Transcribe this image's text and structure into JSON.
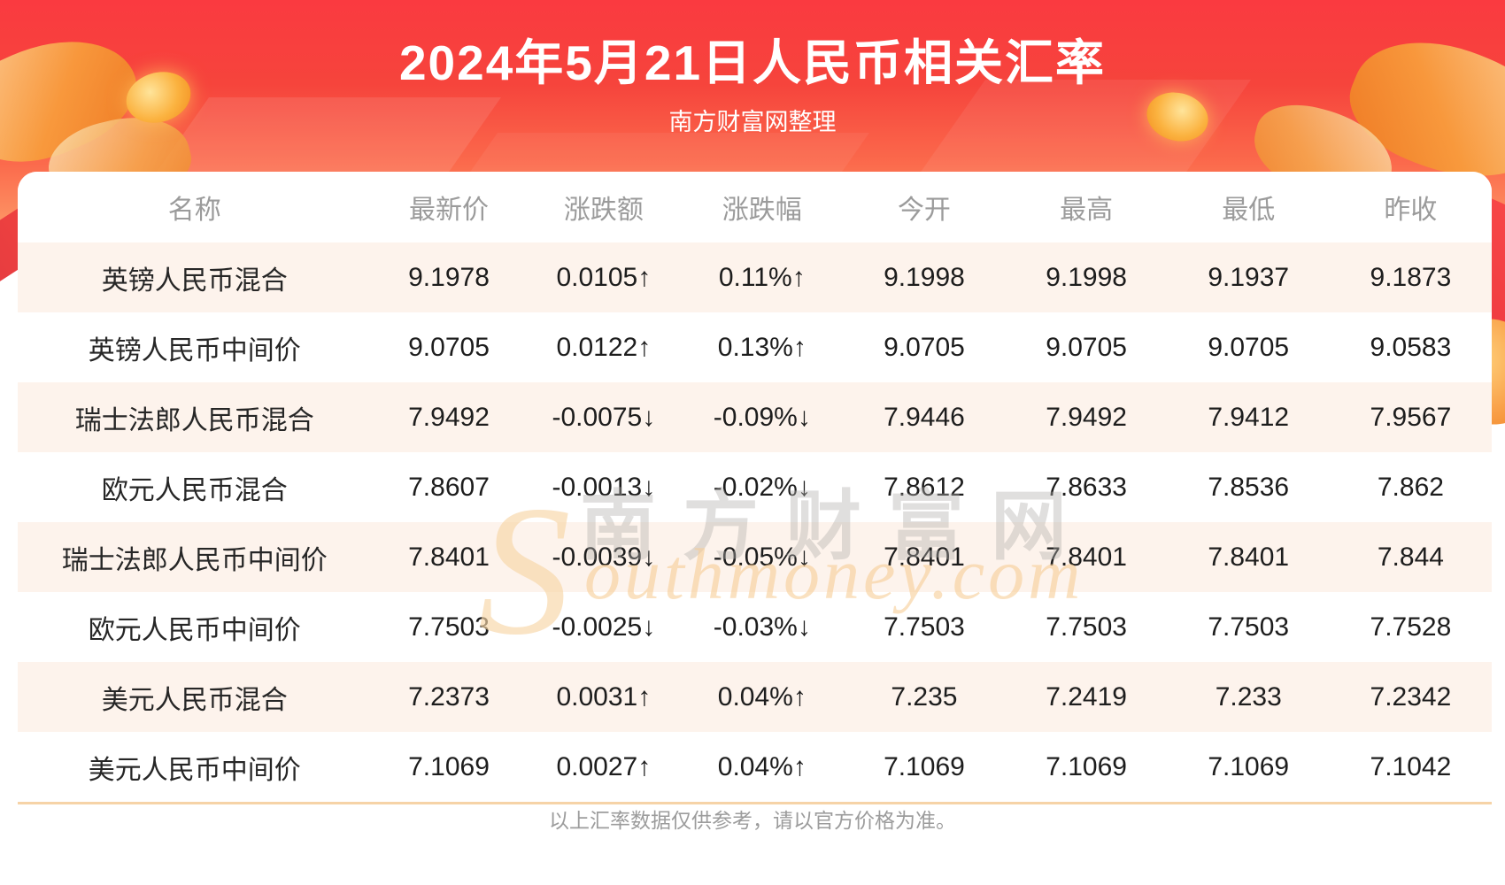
{
  "banner": {
    "title": "2024年5月21日人民币相关汇率",
    "subtitle": "南方财富网整理"
  },
  "chart_data": {
    "type": "table",
    "title": "2024年5月21日人民币相关汇率",
    "columns": [
      "名称",
      "最新价",
      "涨跌额",
      "涨跌幅",
      "今开",
      "最高",
      "最低",
      "昨收"
    ],
    "rows": [
      [
        "英镑人民币混合",
        "9.1978",
        "0.0105↑",
        "0.11%↑",
        "9.1998",
        "9.1998",
        "9.1937",
        "9.1873"
      ],
      [
        "英镑人民币中间价",
        "9.0705",
        "0.0122↑",
        "0.13%↑",
        "9.0705",
        "9.0705",
        "9.0705",
        "9.0583"
      ],
      [
        "瑞士法郎人民币混合",
        "7.9492",
        "-0.0075↓",
        "-0.09%↓",
        "7.9446",
        "7.9492",
        "7.9412",
        "7.9567"
      ],
      [
        "欧元人民币混合",
        "7.8607",
        "-0.0013↓",
        "-0.02%↓",
        "7.8612",
        "7.8633",
        "7.8536",
        "7.862"
      ],
      [
        "瑞士法郎人民币中间价",
        "7.8401",
        "-0.0039↓",
        "-0.05%↓",
        "7.8401",
        "7.8401",
        "7.8401",
        "7.844"
      ],
      [
        "欧元人民币中间价",
        "7.7503",
        "-0.0025↓",
        "-0.03%↓",
        "7.7503",
        "7.7503",
        "7.7503",
        "7.7528"
      ],
      [
        "美元人民币混合",
        "7.2373",
        "0.0031↑",
        "0.04%↑",
        "7.235",
        "7.2419",
        "7.233",
        "7.2342"
      ],
      [
        "美元人民币中间价",
        "7.1069",
        "0.0027↑",
        "0.04%↑",
        "7.1069",
        "7.1069",
        "7.1069",
        "7.1042"
      ]
    ],
    "row_directions": [
      "up",
      "up",
      "down",
      "down",
      "down",
      "down",
      "up",
      "up"
    ],
    "colors": {
      "up": "#fb2424",
      "down": "#0e8e0e",
      "alt_row_bg": "#fdf3ec",
      "banner_red": "#f6443c",
      "divider": "#f6d3a7"
    }
  },
  "watermark": {
    "initial": "S",
    "brand": "南方财富网",
    "script": "outhmoney.com"
  },
  "footer": {
    "disclaimer": "以上汇率数据仅供参考，请以官方价格为准。"
  }
}
